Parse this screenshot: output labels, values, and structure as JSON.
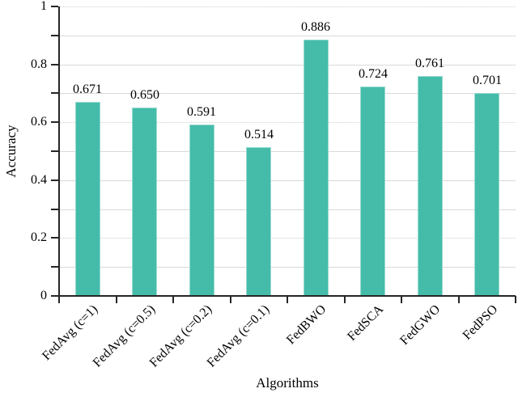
{
  "chart_data": {
    "type": "bar",
    "title": "",
    "xlabel": "Algorithms",
    "ylabel": "Accuracy",
    "categories": [
      "FedAvg (c=1)",
      "FedAvg (c=0.5)",
      "FedAvg (c=0.2)",
      "FedAvg (c=0.1)",
      "FedBWO",
      "FedSCA",
      "FedGWO",
      "FedPSO"
    ],
    "values": [
      0.671,
      0.65,
      0.591,
      0.514,
      0.886,
      0.724,
      0.761,
      0.701
    ],
    "value_labels": [
      "0.671",
      "0.650",
      "0.591",
      "0.514",
      "0.886",
      "0.724",
      "0.761",
      "0.701"
    ],
    "ylim": [
      0,
      1
    ],
    "ytick_values": [
      0,
      0.2,
      0.4,
      0.6,
      0.8,
      1
    ],
    "ytick_labels": [
      "0",
      "0.2",
      "0.4",
      "0.6",
      "0.8",
      "1"
    ],
    "minor_tick_step": 0.1,
    "gridlines": [
      {
        "value": 0.1,
        "style": "solid"
      },
      {
        "value": 0.2,
        "style": "dotted"
      },
      {
        "value": 0.3,
        "style": "solid"
      },
      {
        "value": 0.4,
        "style": "solid"
      },
      {
        "value": 0.5,
        "style": "solid"
      },
      {
        "value": 0.6,
        "style": "dotted"
      },
      {
        "value": 0.7,
        "style": "solid"
      },
      {
        "value": 0.8,
        "style": "solid"
      },
      {
        "value": 0.9,
        "style": "solid"
      },
      {
        "value": 1.0,
        "style": "dotted"
      }
    ],
    "grid_on": true,
    "legend": null,
    "bar_color": "#45bcaa",
    "grid_color": "#d9d9d9",
    "axis_color": "#262626",
    "text_color": "#000000"
  }
}
